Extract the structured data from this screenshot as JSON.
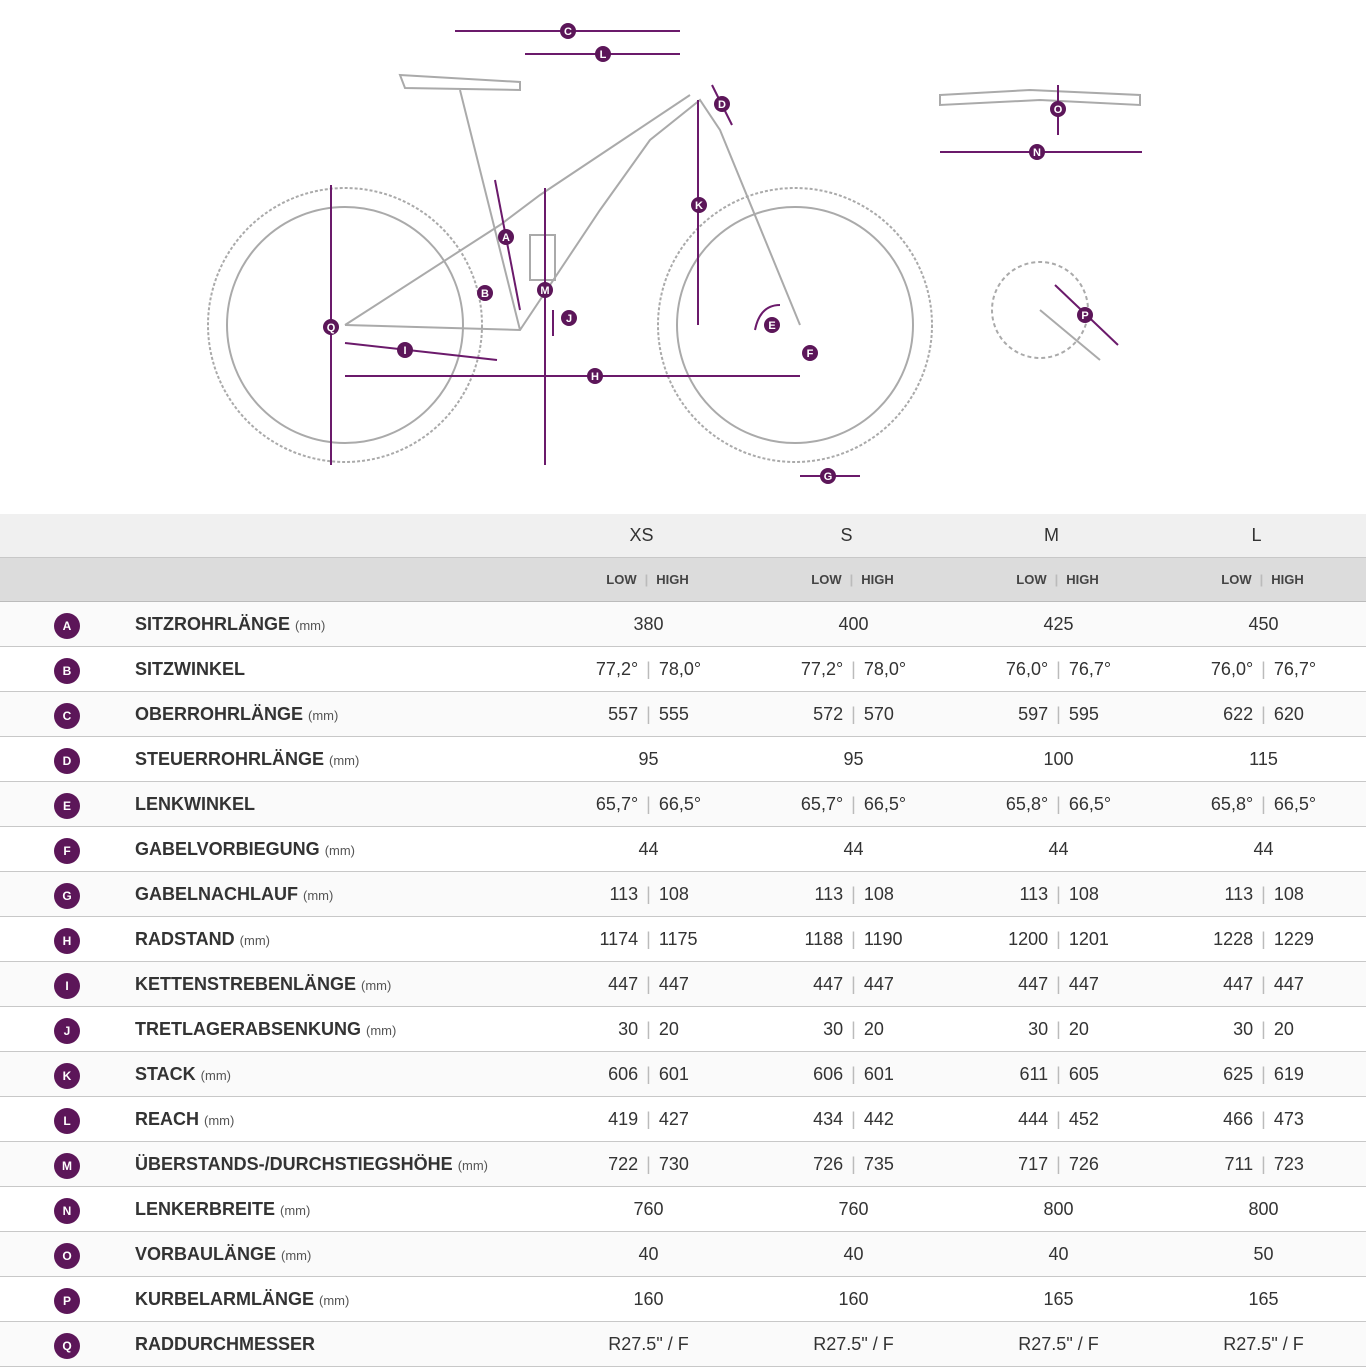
{
  "diagram": {
    "markers": [
      "C",
      "L",
      "D",
      "O",
      "N",
      "K",
      "A",
      "M",
      "B",
      "J",
      "Q",
      "I",
      "E",
      "F",
      "H",
      "P",
      "G"
    ]
  },
  "table": {
    "sizes": [
      "XS",
      "S",
      "M",
      "L"
    ],
    "low": "LOW",
    "high": "HIGH",
    "rows": [
      {
        "key": "A",
        "name": "SITZROHRLÄNGE",
        "unit": "(mm)",
        "values": [
          [
            "380"
          ],
          [
            "400"
          ],
          [
            "425"
          ],
          [
            "450"
          ]
        ]
      },
      {
        "key": "B",
        "name": "SITZWINKEL",
        "values": [
          [
            "77,2°",
            "78,0°"
          ],
          [
            "77,2°",
            "78,0°"
          ],
          [
            "76,0°",
            "76,7°"
          ],
          [
            "76,0°",
            "76,7°"
          ]
        ]
      },
      {
        "key": "C",
        "name": "OBERROHRLÄNGE",
        "unit": "(mm)",
        "values": [
          [
            "557",
            "555"
          ],
          [
            "572",
            "570"
          ],
          [
            "597",
            "595"
          ],
          [
            "622",
            "620"
          ]
        ]
      },
      {
        "key": "D",
        "name": "STEUERROHRLÄNGE",
        "unit": "(mm)",
        "values": [
          [
            "95"
          ],
          [
            "95"
          ],
          [
            "100"
          ],
          [
            "115"
          ]
        ]
      },
      {
        "key": "E",
        "name": "LENKWINKEL",
        "values": [
          [
            "65,7°",
            "66,5°"
          ],
          [
            "65,7°",
            "66,5°"
          ],
          [
            "65,8°",
            "66,5°"
          ],
          [
            "65,8°",
            "66,5°"
          ]
        ]
      },
      {
        "key": "F",
        "name": "GABELVORBIEGUNG",
        "unit": "(mm)",
        "values": [
          [
            "44"
          ],
          [
            "44"
          ],
          [
            "44"
          ],
          [
            "44"
          ]
        ]
      },
      {
        "key": "G",
        "name": "GABELNACHLAUF",
        "unit": "(mm)",
        "values": [
          [
            "113",
            "108"
          ],
          [
            "113",
            "108"
          ],
          [
            "113",
            "108"
          ],
          [
            "113",
            "108"
          ]
        ]
      },
      {
        "key": "H",
        "name": "RADSTAND",
        "unit": "(mm)",
        "values": [
          [
            "1174",
            "1175"
          ],
          [
            "1188",
            "1190"
          ],
          [
            "1200",
            "1201"
          ],
          [
            "1228",
            "1229"
          ]
        ]
      },
      {
        "key": "I",
        "name": "KETTENSTREBENLÄNGE",
        "unit": "(mm)",
        "values": [
          [
            "447",
            "447"
          ],
          [
            "447",
            "447"
          ],
          [
            "447",
            "447"
          ],
          [
            "447",
            "447"
          ]
        ]
      },
      {
        "key": "J",
        "name": "TRETLAGERABSENKUNG",
        "unit": "(mm)",
        "values": [
          [
            "30",
            "20"
          ],
          [
            "30",
            "20"
          ],
          [
            "30",
            "20"
          ],
          [
            "30",
            "20"
          ]
        ]
      },
      {
        "key": "K",
        "name": "STACK",
        "unit": "(mm)",
        "values": [
          [
            "606",
            "601"
          ],
          [
            "606",
            "601"
          ],
          [
            "611",
            "605"
          ],
          [
            "625",
            "619"
          ]
        ]
      },
      {
        "key": "L",
        "name": "REACH",
        "unit": "(mm)",
        "values": [
          [
            "419",
            "427"
          ],
          [
            "434",
            "442"
          ],
          [
            "444",
            "452"
          ],
          [
            "466",
            "473"
          ]
        ]
      },
      {
        "key": "M",
        "name": "ÜBERSTANDS-/DURCHSTIEGSHÖHE",
        "unit": "(mm)",
        "values": [
          [
            "722",
            "730"
          ],
          [
            "726",
            "735"
          ],
          [
            "717",
            "726"
          ],
          [
            "711",
            "723"
          ]
        ]
      },
      {
        "key": "N",
        "name": "LENKERBREITE",
        "unit": "(mm)",
        "values": [
          [
            "760"
          ],
          [
            "760"
          ],
          [
            "800"
          ],
          [
            "800"
          ]
        ]
      },
      {
        "key": "O",
        "name": "VORBAULÄNGE",
        "unit": "(mm)",
        "values": [
          [
            "40"
          ],
          [
            "40"
          ],
          [
            "40"
          ],
          [
            "50"
          ]
        ]
      },
      {
        "key": "P",
        "name": "KURBELARMLÄNGE",
        "unit": "(mm)",
        "values": [
          [
            "160"
          ],
          [
            "160"
          ],
          [
            "165"
          ],
          [
            "165"
          ]
        ]
      },
      {
        "key": "Q",
        "name": "RADDURCHMESSER",
        "values": [
          [
            "R27.5\" / F"
          ],
          [
            "R27.5\" / F"
          ],
          [
            "R27.5\" / F"
          ],
          [
            "R27.5\" / F"
          ]
        ]
      }
    ]
  }
}
